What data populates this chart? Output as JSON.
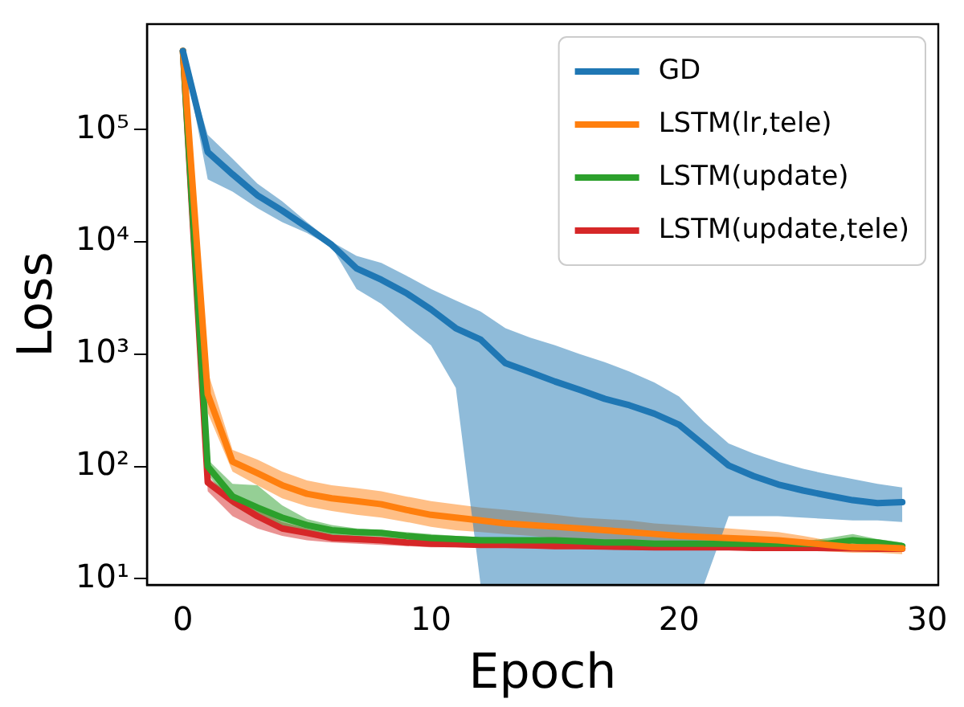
{
  "chart_data": {
    "type": "line",
    "xlabel": "Epoch",
    "ylabel": "Loss",
    "log": "y",
    "grid": false,
    "legend": "top right",
    "marker": "none",
    "line_style": "solid",
    "x": [
      0,
      1,
      2,
      3,
      4,
      5,
      6,
      7,
      8,
      9,
      10,
      11,
      12,
      13,
      14,
      15,
      16,
      17,
      18,
      19,
      20,
      21,
      22,
      23,
      24,
      25,
      26,
      27,
      28,
      29
    ],
    "xlim": [
      -1.45,
      30.45
    ],
    "xticks": [
      0,
      10,
      20,
      30
    ],
    "ylim": [
      8.8,
      870000
    ],
    "yticks": [
      {
        "value": 10,
        "label": "10¹"
      },
      {
        "value": 100,
        "label": "10²"
      },
      {
        "value": 1000,
        "label": "10³"
      },
      {
        "value": 10000,
        "label": "10⁴"
      },
      {
        "value": 100000,
        "label": "10⁵"
      }
    ],
    "series": [
      {
        "name": "GD",
        "color": "#1f77b4",
        "values": [
          500000,
          63000,
          40000,
          26000,
          19000,
          13500,
          9400,
          5800,
          4600,
          3500,
          2500,
          1700,
          1350,
          830,
          690,
          570,
          480,
          400,
          350,
          295,
          235,
          155,
          102,
          82,
          69,
          61,
          55,
          50,
          47,
          48
        ],
        "upper": [
          500000,
          90000,
          55000,
          33000,
          23000,
          15000,
          10000,
          7500,
          6500,
          5000,
          3800,
          3000,
          2400,
          1700,
          1400,
          1200,
          1000,
          850,
          700,
          560,
          420,
          250,
          160,
          130,
          110,
          95,
          85,
          77,
          70,
          65
        ],
        "lower": [
          500000,
          36000,
          28000,
          20000,
          15000,
          12000,
          9000,
          3800,
          2800,
          1800,
          1200,
          500,
          8.8,
          8.8,
          8.8,
          8.8,
          8.8,
          8.8,
          8.8,
          8.8,
          8.8,
          8.8,
          36,
          36,
          36,
          35,
          34,
          33,
          33,
          32
        ]
      },
      {
        "name": "LSTM(lr,tele)",
        "color": "#ff7f0e",
        "values": [
          500000,
          440,
          110,
          87,
          68,
          57,
          52,
          49,
          46,
          41,
          37,
          35,
          33,
          31,
          30,
          29,
          28,
          27,
          26,
          25,
          24,
          23.5,
          23,
          22.5,
          22,
          21,
          20,
          19,
          19,
          18.6
        ],
        "upper": [
          500000,
          700,
          140,
          115,
          90,
          75,
          68,
          64,
          60,
          54,
          49,
          46,
          43,
          41,
          39,
          37,
          35,
          34,
          33,
          31,
          30,
          29,
          28,
          27,
          26,
          24,
          22,
          21,
          21,
          20
        ],
        "lower": [
          500000,
          300,
          90,
          68,
          52,
          44,
          40,
          37,
          35,
          32,
          29,
          27,
          26,
          25,
          24,
          23,
          22,
          22,
          21,
          20,
          20,
          19.5,
          19,
          19,
          18.5,
          18,
          17.5,
          17,
          17,
          16.5
        ]
      },
      {
        "name": "LSTM(update)",
        "color": "#2ca02c",
        "values": [
          500000,
          100,
          54,
          43,
          35,
          30,
          27,
          26,
          25.6,
          24,
          23,
          22.5,
          22,
          22,
          22,
          22,
          21.5,
          21,
          21,
          20.5,
          20.5,
          20.5,
          20.5,
          20.5,
          20.5,
          20.5,
          20.5,
          22,
          21,
          19.5
        ],
        "upper": [
          500000,
          115,
          70,
          68,
          45,
          34,
          30,
          28,
          27,
          26,
          25,
          24,
          23.5,
          23.5,
          23,
          23,
          22.5,
          22,
          22,
          21.5,
          21.5,
          21.5,
          21.5,
          21.5,
          21.5,
          21.5,
          23,
          25,
          22.5,
          21
        ],
        "lower": [
          500000,
          85,
          45,
          34,
          29,
          26,
          24,
          23,
          22.5,
          22,
          21.5,
          21,
          20.5,
          20.5,
          20.5,
          20.5,
          20,
          20,
          20,
          19.5,
          19.5,
          19.5,
          19.5,
          19.5,
          19.5,
          19.5,
          19.5,
          20,
          19.5,
          18.5
        ]
      },
      {
        "name": "LSTM(update,tele)",
        "color": "#d62728",
        "values": [
          500000,
          72,
          49,
          36,
          28,
          25.5,
          23,
          22.5,
          22,
          21,
          20.5,
          20.3,
          20,
          20,
          19.8,
          19.5,
          19.5,
          19.3,
          19.2,
          19,
          19,
          19,
          19,
          18.8,
          18.8,
          18.8,
          18.7,
          18.6,
          18.5,
          18.5
        ],
        "upper": [
          500000,
          80,
          55,
          42,
          32,
          28,
          25,
          24,
          23,
          22,
          21.5,
          21.2,
          21,
          21,
          20.5,
          20.3,
          20.2,
          20,
          20,
          19.8,
          19.8,
          19.8,
          19.8,
          19.6,
          19.6,
          19.6,
          19.5,
          19.4,
          19.3,
          19.3
        ],
        "lower": [
          500000,
          60,
          36,
          28,
          24,
          22,
          21,
          20.5,
          20,
          19.5,
          19,
          19,
          18.8,
          18.8,
          18.6,
          18.4,
          18.4,
          18.2,
          18.1,
          18,
          18,
          18,
          18,
          17.8,
          17.8,
          17.8,
          17.7,
          17.6,
          17.5,
          17.5
        ]
      }
    ]
  }
}
